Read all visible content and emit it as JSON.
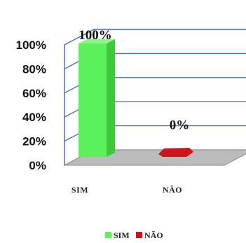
{
  "chart_data": {
    "type": "bar",
    "categories": [
      "SIM",
      "NÃO"
    ],
    "values": [
      100,
      0
    ],
    "data_labels": [
      "100%",
      "0%"
    ],
    "ylim": [
      0,
      100
    ],
    "y_ticks": [
      "0%",
      "20%",
      "40%",
      "60%",
      "80%",
      "100%"
    ],
    "grid": true,
    "legend_position": "bottom",
    "legend": [
      "SIM",
      "NÃO"
    ],
    "colors": [
      "#5cf05a",
      "#c8161a"
    ],
    "style": "3d-column"
  }
}
